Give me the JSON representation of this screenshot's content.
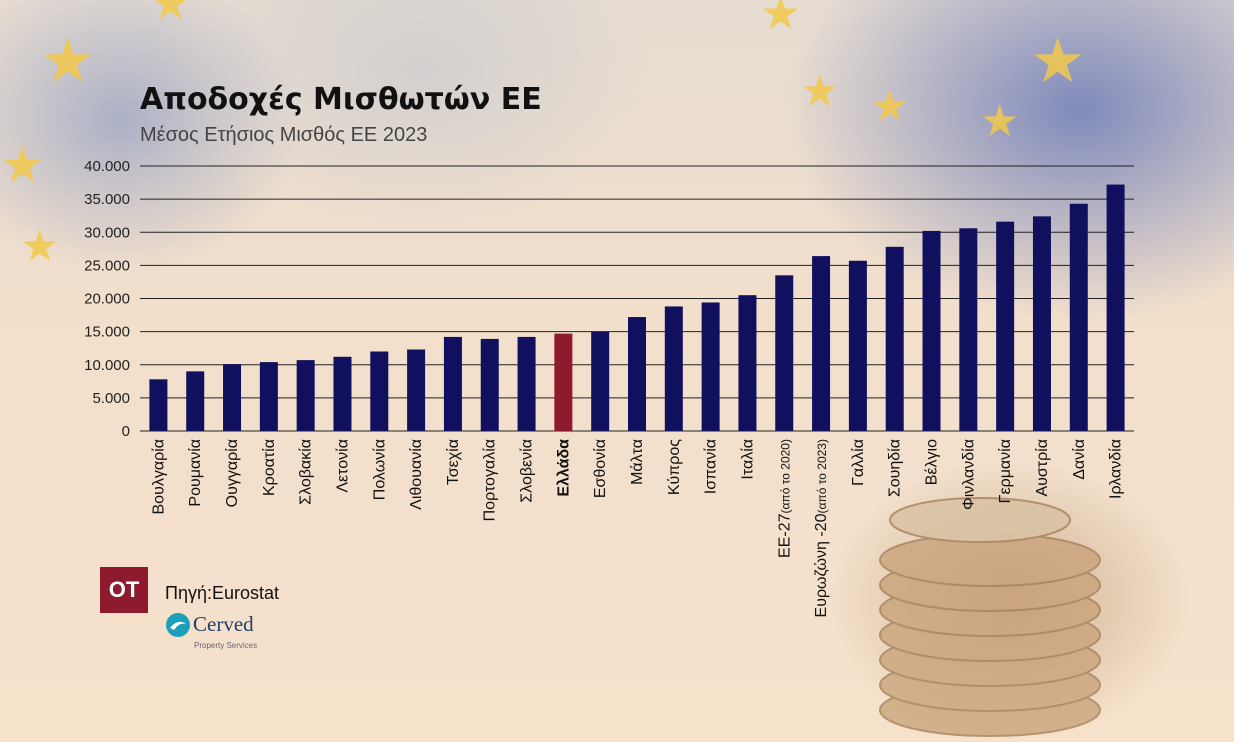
{
  "header": {
    "title": "Αποδοχές Μισθωτών ΕΕ",
    "subtitle": "Μέσος Ετήσιος Μισθός ΕΕ 2023"
  },
  "footer": {
    "logo_text": "OT",
    "source": "Πηγή:Eurostat",
    "brand_name": "Cerved",
    "brand_sub": "Property Services"
  },
  "colors": {
    "bar": "#10105e",
    "highlight": "#8e1a2e"
  },
  "chart_data": {
    "type": "bar",
    "title": "Αποδοχές Μισθωτών ΕΕ",
    "subtitle": "Μέσος Ετήσιος Μισθός ΕΕ 2023",
    "xlabel": "",
    "ylabel": "",
    "ylim": [
      0,
      40000
    ],
    "yticks": [
      0,
      5000,
      10000,
      15000,
      20000,
      25000,
      30000,
      35000,
      40000
    ],
    "ytick_labels": [
      "0",
      "5.000",
      "10.000",
      "15.000",
      "20.000",
      "25.000",
      "30.000",
      "35.000",
      "40.000"
    ],
    "grid": true,
    "highlight_category": "Ελλάδα",
    "categories": [
      "Βουλγαρία",
      "Ρουμανία",
      "Ουγγαρία",
      "Κροατία",
      "Σλοβακία",
      "Λετονία",
      "Πολωνία",
      "Λιθουανία",
      "Τσεχία",
      "Πορτογαλία",
      "Σλοβενία",
      "Ελλάδα",
      "Εσθονία",
      "Μάλτα",
      "Κύπρος",
      "Ισπανία",
      "Ιταλία",
      "ΕΕ-27",
      "Ευρωζώνη -20",
      "Γαλλία",
      "Σουηδία",
      "Βέλγιο",
      "Φινλανδία",
      "Γερμανία",
      "Αυστρία",
      "Δανία",
      "Ιρλανδία"
    ],
    "category_notes": [
      "",
      "",
      "",
      "",
      "",
      "",
      "",
      "",
      "",
      "",
      "",
      "",
      "",
      "",
      "",
      "",
      "",
      "(από το 2020)",
      "(από το 2023)",
      "",
      "",
      "",
      "",
      "",
      "",
      "",
      ""
    ],
    "values": [
      7800,
      9000,
      10100,
      10400,
      10700,
      11200,
      12000,
      12300,
      14200,
      13900,
      14200,
      14700,
      15000,
      17200,
      18800,
      19400,
      20500,
      23500,
      26400,
      25700,
      27800,
      30200,
      30600,
      31600,
      32400,
      34300,
      37200
    ]
  }
}
